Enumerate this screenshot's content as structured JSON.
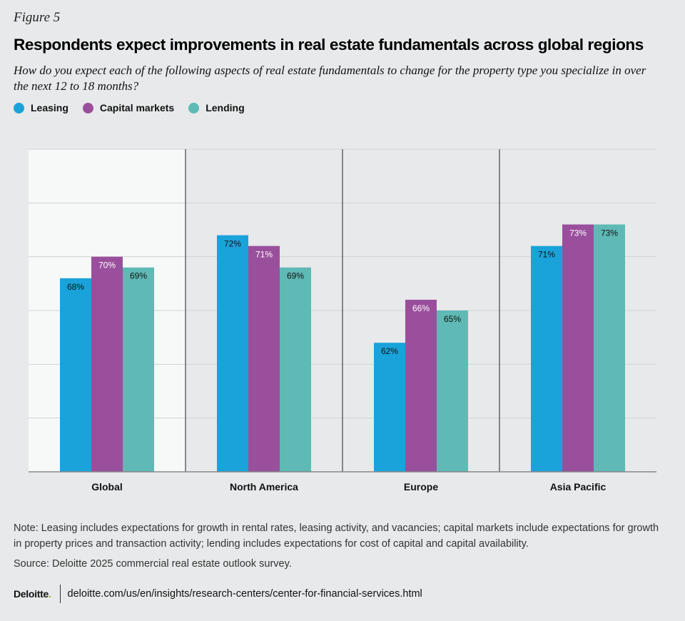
{
  "figure_label": "Figure 5",
  "colors": {
    "leasing": "#1aa3db",
    "capital_markets": "#9a4f9d",
    "lending": "#5fb9b4",
    "background": "#e8e9ea",
    "highlight_panel": "#f7f8f8"
  },
  "chart_data": {
    "type": "bar",
    "title": "Respondents expect improvements in real estate fundamentals across global regions",
    "subtitle": "How do you expect each of the following aspects of real estate fundamentals to change for the property type you specialize in over the next 12 to 18 months?",
    "xlabel": "",
    "ylabel": "",
    "ylim": [
      50,
      80
    ],
    "grid": true,
    "legend_position": "top-left",
    "categories": [
      "Global",
      "North America",
      "Europe",
      "Asia Pacific"
    ],
    "series": [
      {
        "name": "Leasing",
        "values": [
          68,
          72,
          62,
          71
        ],
        "labels": [
          "68%",
          "72%",
          "62%",
          "71%"
        ]
      },
      {
        "name": "Capital markets",
        "values": [
          70,
          71,
          66,
          73
        ],
        "labels": [
          "70%",
          "71%",
          "66%",
          "73%"
        ]
      },
      {
        "name": "Lending",
        "values": [
          69,
          69,
          65,
          73
        ],
        "labels": [
          "69%",
          "69%",
          "65%",
          "73%"
        ]
      }
    ]
  },
  "note": "Note: Leasing includes expectations for growth in rental rates, leasing activity, and vacancies; capital markets include expectations for growth in property prices and transaction activity; lending includes expectations for cost of capital and capital availability.",
  "source": "Source: Deloitte 2025 commercial real estate outlook survey.",
  "footer": {
    "brand": "Deloitte",
    "brand_dot": ".",
    "url": "deloitte.com/us/en/insights/research-centers/center-for-financial-services.html"
  }
}
